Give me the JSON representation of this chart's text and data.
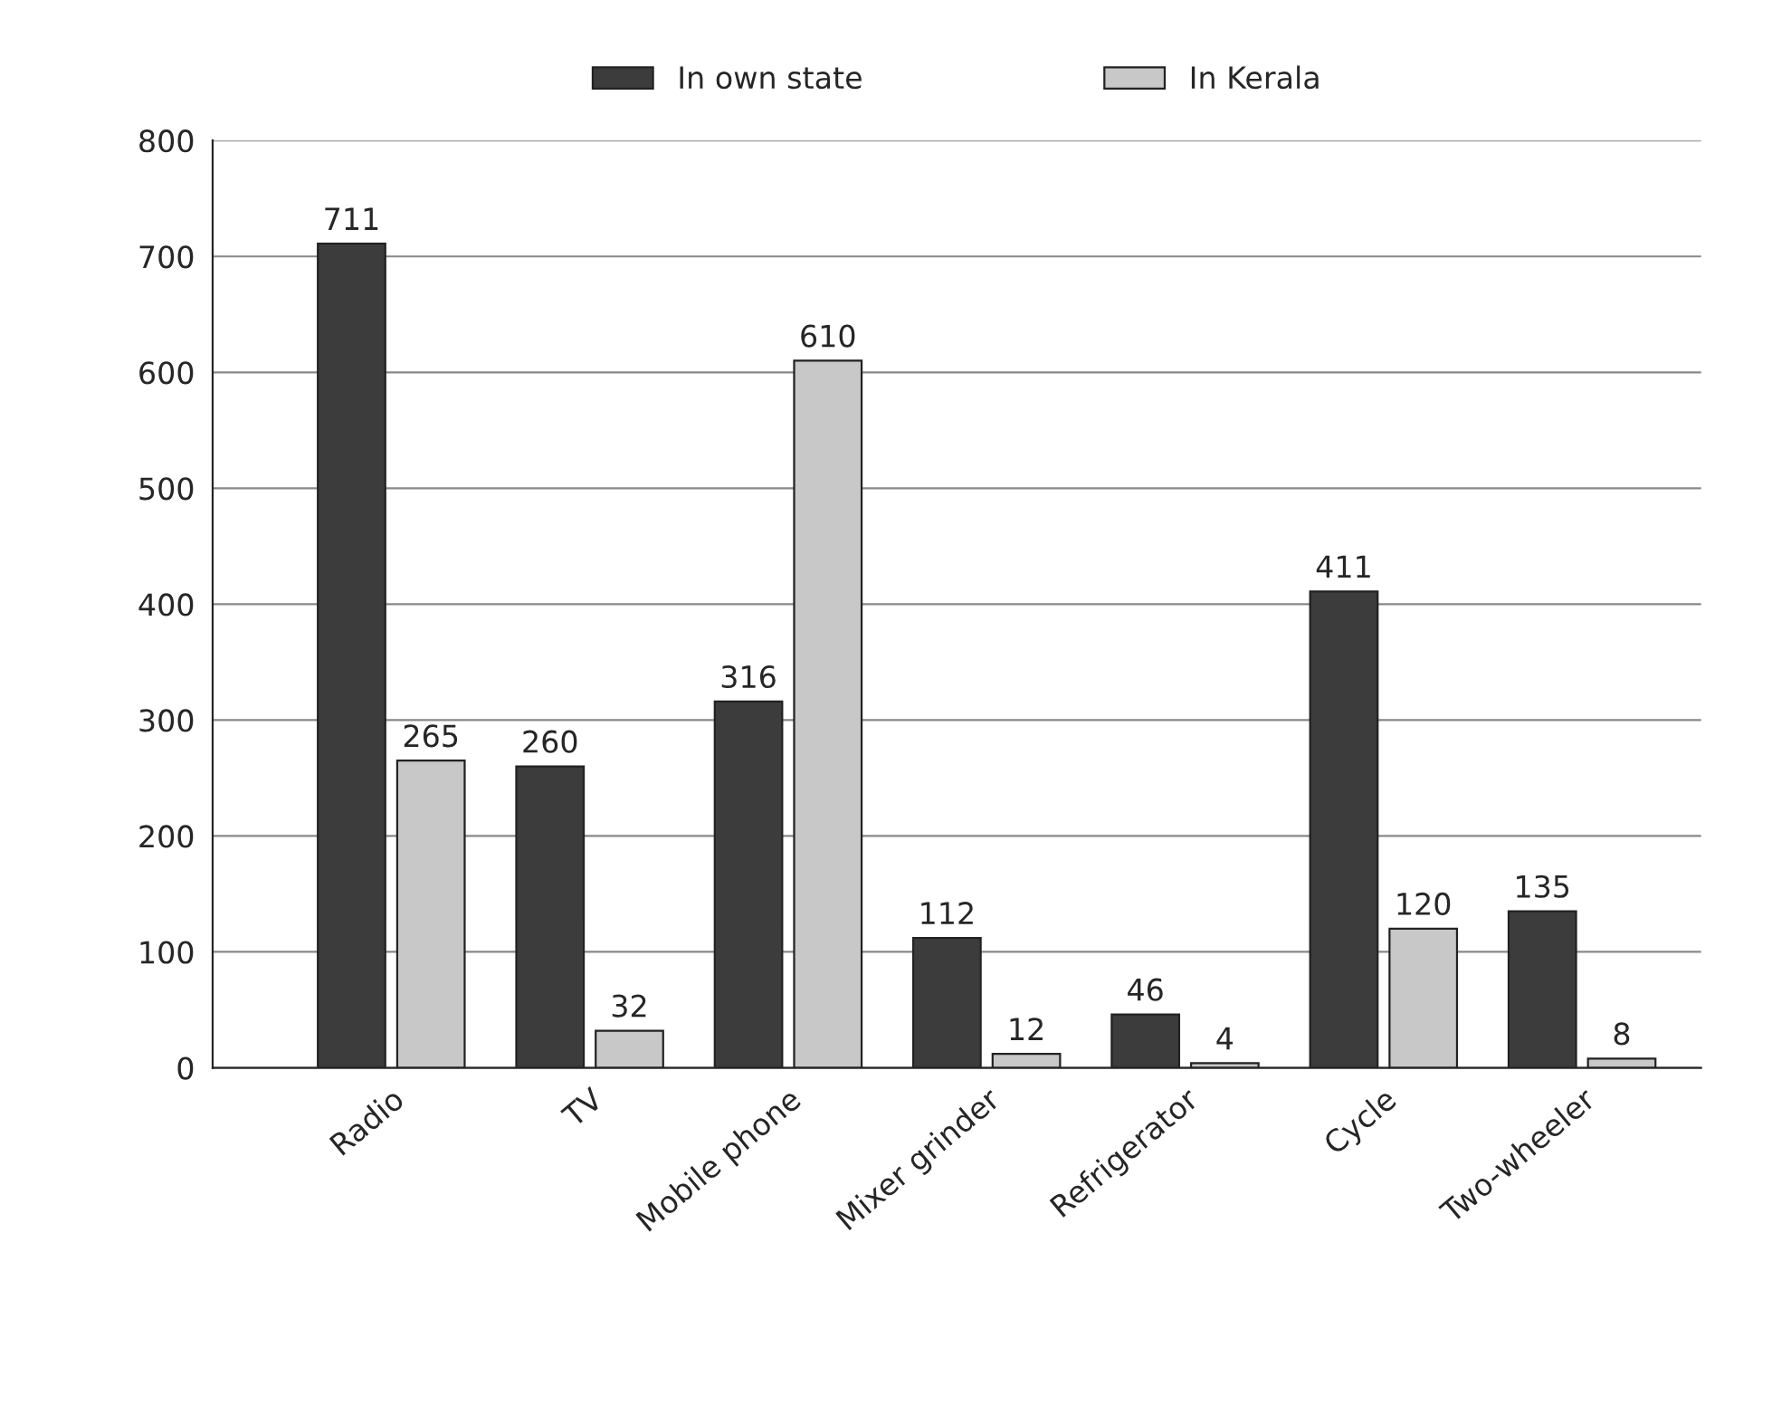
{
  "chart_data": {
    "type": "bar",
    "categories": [
      "Radio",
      "TV",
      "Mobile phone",
      "Mixer grinder",
      "Refrigerator",
      "Cycle",
      "Two-wheeler"
    ],
    "series": [
      {
        "name": "In own state",
        "color": "#3c3c3c",
        "values": [
          711,
          260,
          316,
          112,
          46,
          411,
          135
        ]
      },
      {
        "name": "In Kerala",
        "color": "#c8c8c8",
        "values": [
          265,
          32,
          610,
          12,
          4,
          120,
          8
        ]
      }
    ],
    "ylim": [
      0,
      800
    ],
    "yticks": [
      0,
      100,
      200,
      300,
      400,
      500,
      600,
      700,
      800
    ],
    "grid": "y",
    "legend": "top",
    "data_labels": true
  }
}
